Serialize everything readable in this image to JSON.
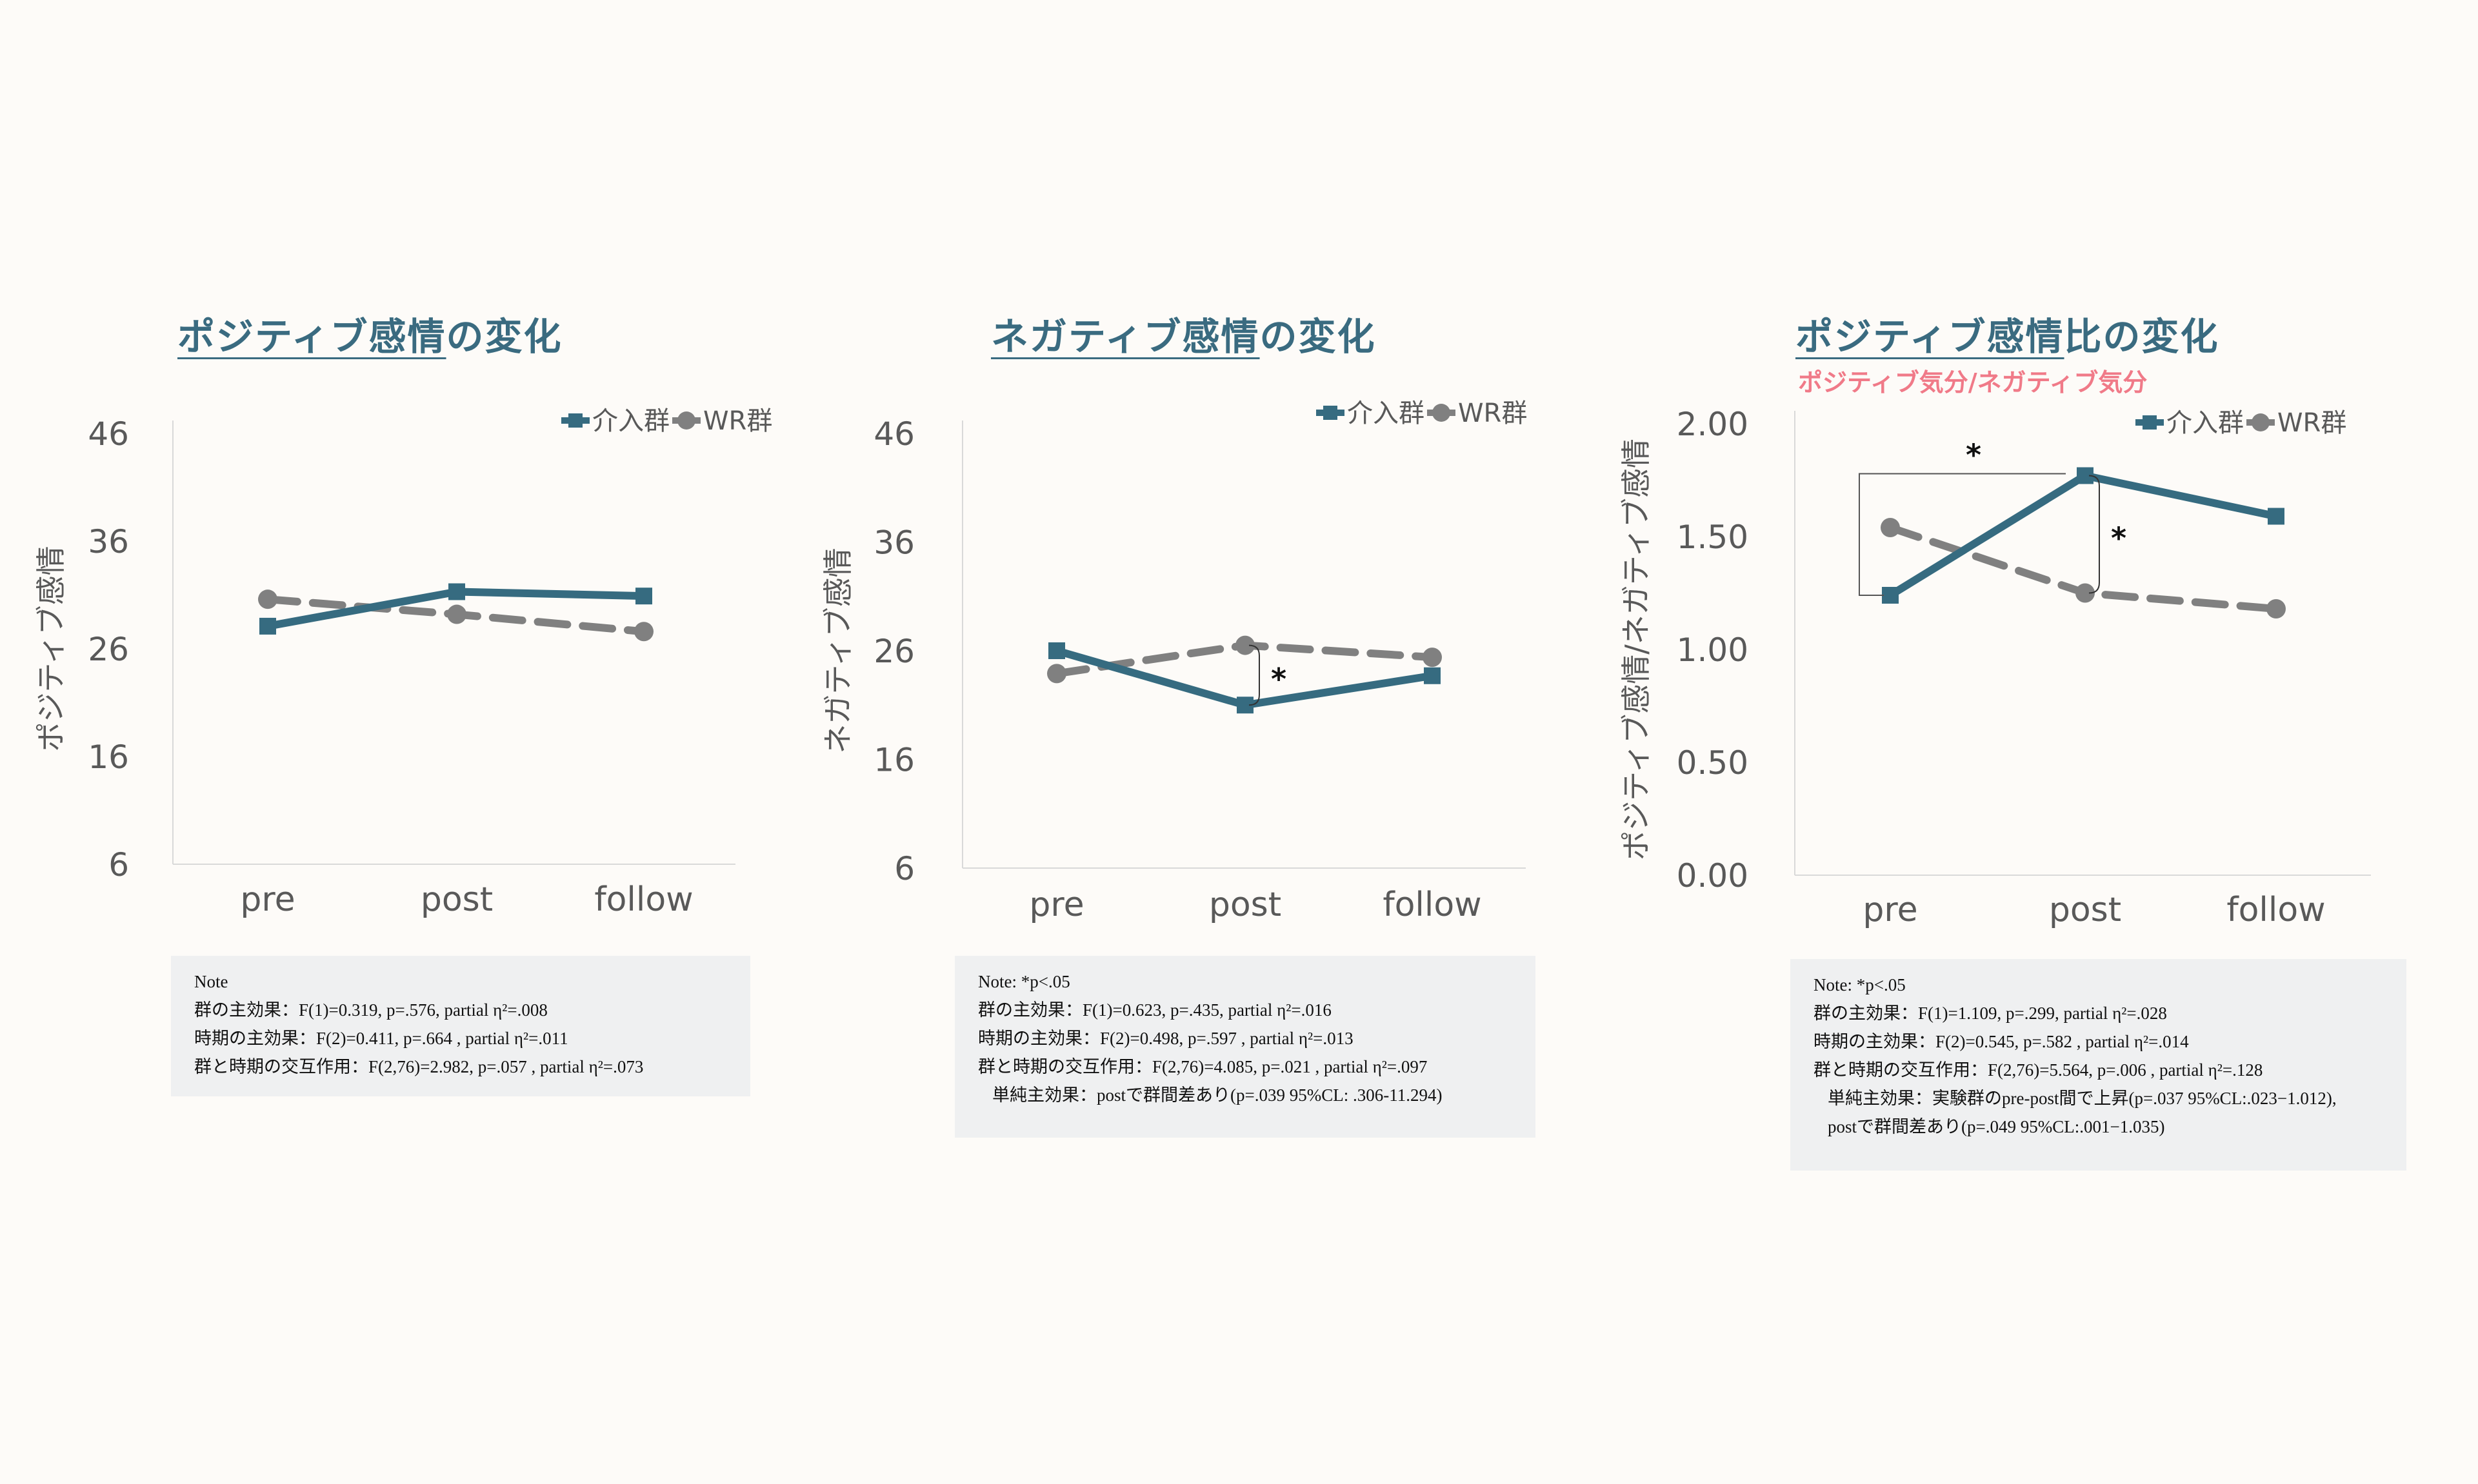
{
  "colors": {
    "intervention": "#366b80",
    "wr": "#808080",
    "title": "#3a6b80",
    "subtitle": "#f07a88"
  },
  "panels": [
    {
      "title_underlined": "ポジティブ感情",
      "title_rest": "の変化",
      "subtitle": "",
      "note_lines": [
        "Note",
        "群の主効果：F(1)=0.319, p=.576, partial η²=.008",
        "時期の主効果：F(2)=0.411, p=.664 , partial η²=.011",
        "群と時期の交互作用：F(2,76)=2.982, p=.057 , partial η²=.073"
      ],
      "note_simple": []
    },
    {
      "title_underlined": "ネガティブ感情",
      "title_rest": "の変化",
      "subtitle": "",
      "note_lines": [
        "Note: *p<.05",
        "群の主効果：F(1)=0.623, p=.435, partial η²=.016",
        "時期の主効果：F(2)=0.498, p=.597 , partial η²=.013",
        "群と時期の交互作用：F(2,76)=4.085, p=.021 , partial η²=.097"
      ],
      "note_simple": [
        "単純主効果：postで群間差あり(p=.039 95%CL: .306-11.294)"
      ]
    },
    {
      "title_underlined": "ポジティブ感情",
      "title_rest": "比の変化",
      "subtitle": "ポジティブ気分/ネガティブ気分",
      "note_lines": [
        "Note: *p<.05",
        "群の主効果：F(1)=1.109, p=.299, partial η²=.028",
        "時期の主効果：F(2)=0.545, p=.582 , partial η²=.014",
        "群と時期の交互作用：F(2,76)=5.564, p=.006 , partial η²=.128"
      ],
      "note_simple": [
        "単純主効果：実験群のpre-post間で上昇(p=.037 95%CL:.023−1.012),",
        "postで群間差あり(p=.049 95%CL:.001−1.035)"
      ]
    }
  ],
  "chart_data": [
    {
      "type": "line",
      "title": "ポジティブ感情の変化",
      "ylabel": "ポジティブ感情",
      "categories": [
        "pre",
        "post",
        "follow"
      ],
      "yticks": [
        "6",
        "16",
        "26",
        "36",
        "46"
      ],
      "ylim": [
        6,
        46
      ],
      "legend_position": "top-right",
      "series": [
        {
          "name": "介入群",
          "values": [
            28.1,
            31.3,
            30.9
          ],
          "marker": "square",
          "dashed": false
        },
        {
          "name": "WR群",
          "values": [
            30.6,
            29.2,
            27.6
          ],
          "marker": "circle",
          "dashed": true
        }
      ],
      "annotations": []
    },
    {
      "type": "line",
      "title": "ネガティブ感情の変化",
      "ylabel": "ネガティブ感情",
      "categories": [
        "pre",
        "post",
        "follow"
      ],
      "yticks": [
        "6",
        "16",
        "26",
        "36",
        "46"
      ],
      "ylim": [
        6,
        46
      ],
      "legend_position": "top-right",
      "series": [
        {
          "name": "介入群",
          "values": [
            26.0,
            21.0,
            23.7
          ],
          "marker": "square",
          "dashed": false
        },
        {
          "name": "WR群",
          "values": [
            23.9,
            26.5,
            25.4
          ],
          "marker": "circle",
          "dashed": true
        }
      ],
      "annotations": [
        {
          "text": "*",
          "type": "between_groups",
          "category": "post"
        }
      ]
    },
    {
      "type": "line",
      "title": "ポジティブ感情比の変化",
      "ylabel": "ポジティブ感情/ネガティブ感情",
      "categories": [
        "pre",
        "post",
        "follow"
      ],
      "yticks": [
        "0.00",
        "0.50",
        "1.00",
        "1.50",
        "2.00"
      ],
      "ylim": [
        0,
        2
      ],
      "legend_position": "top-right",
      "series": [
        {
          "name": "介入群",
          "values": [
            1.24,
            1.77,
            1.59
          ],
          "marker": "square",
          "dashed": false
        },
        {
          "name": "WR群",
          "values": [
            1.54,
            1.25,
            1.18
          ],
          "marker": "circle",
          "dashed": true
        }
      ],
      "annotations": [
        {
          "text": "*",
          "type": "pre_post_intervention"
        },
        {
          "text": "*",
          "type": "between_groups",
          "category": "post"
        }
      ]
    }
  ]
}
